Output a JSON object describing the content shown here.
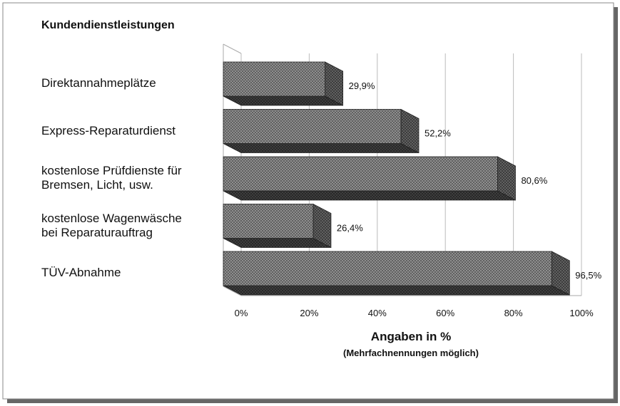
{
  "chart_data": {
    "type": "bar",
    "orientation": "horizontal",
    "title": "Kundendienstleistungen",
    "categories": [
      "Direktannahmeplätze",
      "Express-Reparaturdienst",
      "kostenlose Prüfdienste für\nBremsen, Licht, usw.",
      "kostenlose Wagenwäsche\nbei Reparaturauftrag",
      "TÜV-Abnahme"
    ],
    "values": [
      29.9,
      52.2,
      80.6,
      26.4,
      96.5
    ],
    "value_labels": [
      "29,9%",
      "52,2%",
      "80,6%",
      "26,4%",
      "96,5%"
    ],
    "color": "#8a8a8a",
    "xlim": [
      0,
      100
    ],
    "xticks": [
      {
        "value": 0,
        "label": "0%"
      },
      {
        "value": 20,
        "label": "20%"
      },
      {
        "value": 40,
        "label": "40%"
      },
      {
        "value": 60,
        "label": "60%"
      },
      {
        "value": 80,
        "label": "80%"
      },
      {
        "value": 100,
        "label": "100%"
      }
    ],
    "xlabel": "Angaben in %",
    "note": "(Mehrfachnennungen möglich)",
    "grid": true
  }
}
